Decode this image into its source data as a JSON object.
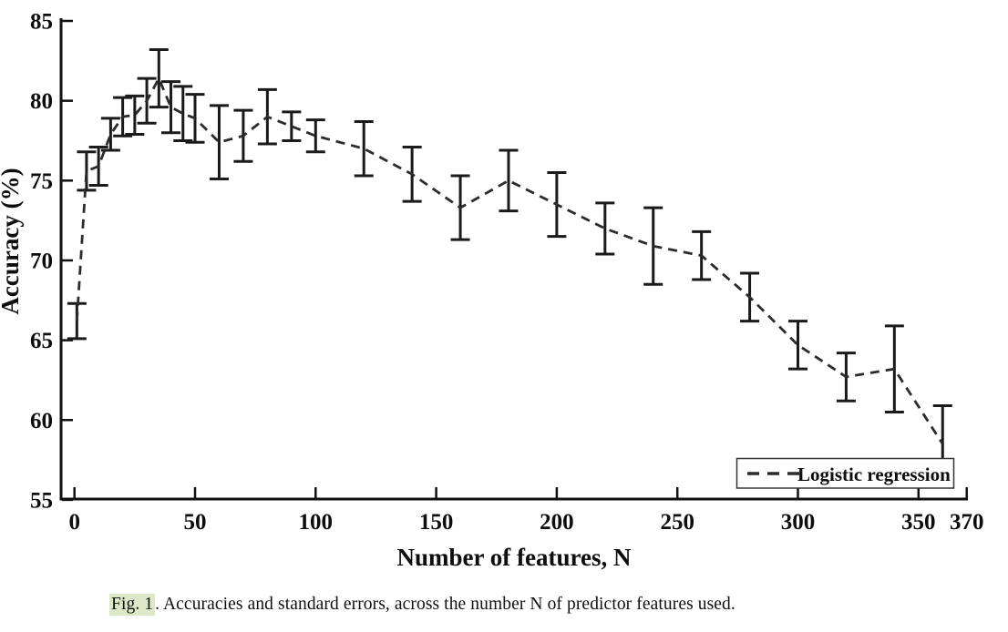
{
  "figure": {
    "y_axis": {
      "label": "Accuracy (%)",
      "ticks": [
        55,
        60,
        65,
        70,
        75,
        80,
        85
      ]
    },
    "x_axis": {
      "label": "Number of features, N",
      "ticks": [
        0,
        50,
        100,
        150,
        200,
        250,
        300,
        350,
        370
      ]
    },
    "legend": {
      "label": "Logistic regression"
    },
    "caption": {
      "highlight": "Fig. 1",
      "rest": ". Accuracies and standard errors, across the number N of predictor features used.",
      "highlight_color": "#dde8c9"
    },
    "colors": {
      "line": "#2b2b2b",
      "errorbar": "#1a1a1a",
      "axis": "#111111",
      "legend_border": "#333333"
    }
  },
  "chart_data": {
    "type": "line",
    "title": "",
    "xlabel": "Number of features, N",
    "ylabel": "Accuracy (%)",
    "xlim": [
      -8,
      375
    ],
    "ylim": [
      55,
      85
    ],
    "grid": false,
    "error_bars": true,
    "legend_position": "lower right",
    "series": [
      {
        "name": "Logistic regression",
        "style": "dashed",
        "color": "#2b2b2b",
        "x": [
          1,
          5,
          10,
          15,
          20,
          25,
          30,
          35,
          40,
          45,
          50,
          60,
          70,
          80,
          90,
          100,
          120,
          140,
          160,
          180,
          200,
          220,
          240,
          260,
          280,
          300,
          320,
          340,
          360
        ],
        "y": [
          66.2,
          75.6,
          75.9,
          77.9,
          79.0,
          79.1,
          80.0,
          81.4,
          79.6,
          79.2,
          78.9,
          77.4,
          77.8,
          79.0,
          78.4,
          77.8,
          77.0,
          75.4,
          73.3,
          75.0,
          73.5,
          72.0,
          70.9,
          70.3,
          67.7,
          64.7,
          62.7,
          63.2,
          58.5
        ],
        "yerr": [
          1.1,
          1.2,
          1.2,
          1.0,
          1.2,
          1.2,
          1.4,
          1.8,
          1.6,
          1.7,
          1.5,
          2.3,
          1.6,
          1.7,
          0.9,
          1.0,
          1.7,
          1.7,
          2.0,
          1.9,
          2.0,
          1.6,
          2.4,
          1.5,
          1.5,
          1.5,
          1.5,
          2.7,
          2.4
        ]
      }
    ]
  }
}
